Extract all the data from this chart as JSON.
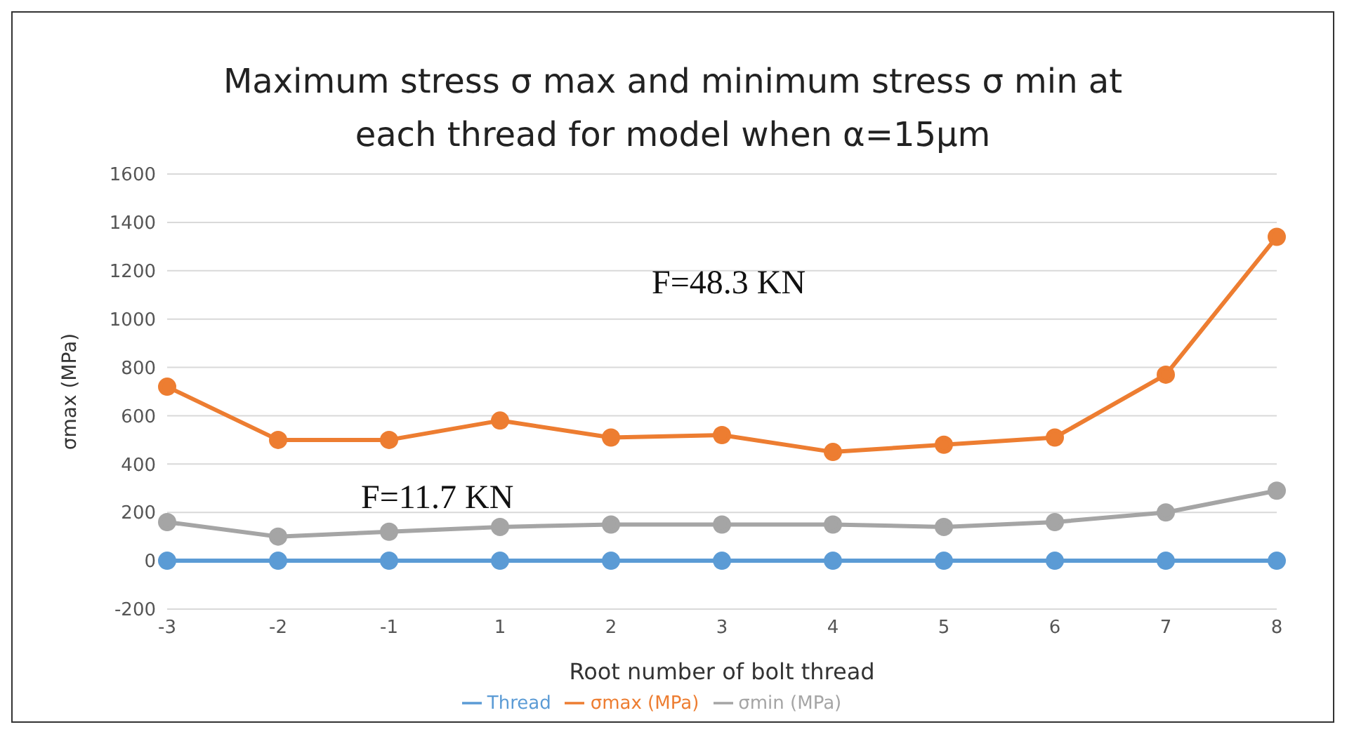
{
  "chart_data": {
    "type": "line",
    "title": "Maximum stress σ max  and minimum stress  σ min at each thread for model when α=15μm",
    "xlabel": "Root number of bolt thread",
    "ylabel": "σmax  (MPa)",
    "categories": [
      "-3",
      "-2",
      "-1",
      "1",
      "2",
      "3",
      "4",
      "5",
      "6",
      "7",
      "8"
    ],
    "series": [
      {
        "name": "Thread",
        "color": "#5b9bd5",
        "values": [
          0,
          0,
          0,
          0,
          0,
          0,
          0,
          0,
          0,
          0,
          0
        ]
      },
      {
        "name": "σmax (MPa)",
        "color": "#ed7d31",
        "values": [
          720,
          500,
          500,
          580,
          510,
          520,
          450,
          480,
          510,
          770,
          1340
        ]
      },
      {
        "name": "σmin (MPa)",
        "color": "#a5a5a5",
        "values": [
          160,
          100,
          120,
          140,
          150,
          150,
          150,
          140,
          160,
          200,
          290
        ]
      }
    ],
    "ylim": [
      -200,
      1600
    ],
    "yticks": [
      -200,
      0,
      200,
      400,
      600,
      800,
      1000,
      1200,
      1400,
      1600
    ],
    "grid": "y",
    "legend": "bottom",
    "marker": "circle",
    "line_style": "solid",
    "annotations": [
      "F=48.3 KN",
      "F=11.7 KN"
    ]
  }
}
